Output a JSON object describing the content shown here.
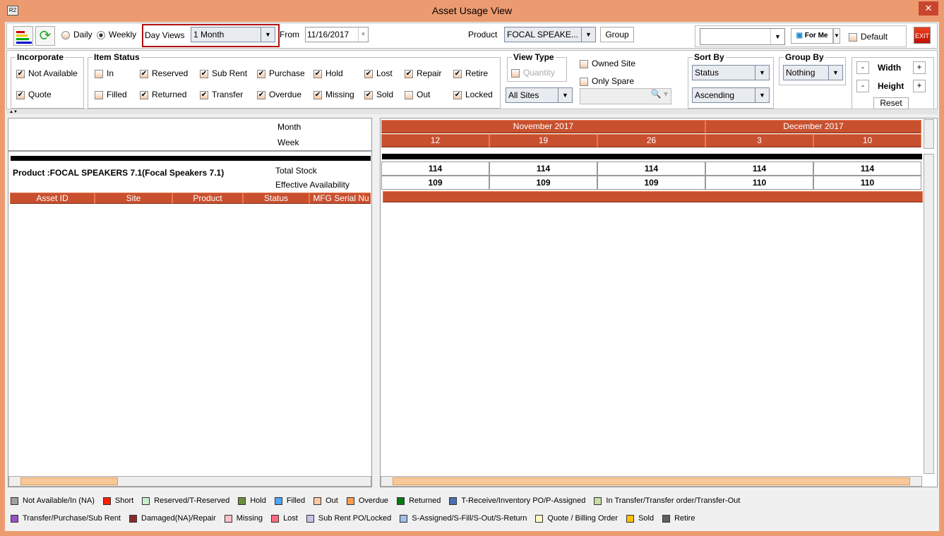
{
  "window": {
    "title": "Asset Usage View",
    "close": "✕",
    "logo": "R2"
  },
  "toolbar": {
    "daily": "Daily",
    "weekly": "Weekly",
    "day_views_label": "Day Views",
    "day_views": "1 Month",
    "from_label": "From",
    "from": "11/16/2017",
    "product_label": "Product",
    "product": "FOCAL SPEAKE...",
    "group": "Group",
    "view_select": "",
    "for_me": "For Me",
    "default": "Default",
    "exit": "EXIT",
    "selected_mode": "Weekly"
  },
  "incorporate": {
    "title": "Incorporate",
    "items": [
      {
        "label": "Not Available",
        "checked": true
      },
      {
        "label": "Quote",
        "checked": true
      }
    ]
  },
  "item_status": {
    "title": "Item Status",
    "items": [
      {
        "label": "In",
        "checked": false
      },
      {
        "label": "Reserved",
        "checked": true
      },
      {
        "label": "Sub Rent",
        "checked": true
      },
      {
        "label": "Purchase",
        "checked": true
      },
      {
        "label": "Hold",
        "checked": true
      },
      {
        "label": "Lost",
        "checked": true
      },
      {
        "label": "Repair",
        "checked": true
      },
      {
        "label": "Retire",
        "checked": true
      },
      {
        "label": "Filled",
        "checked": false
      },
      {
        "label": "Returned",
        "checked": true
      },
      {
        "label": "Transfer",
        "checked": true
      },
      {
        "label": "Overdue",
        "checked": true
      },
      {
        "label": "Missing",
        "checked": true
      },
      {
        "label": "Sold",
        "checked": true
      },
      {
        "label": "Out",
        "checked": false
      },
      {
        "label": "Locked",
        "checked": true
      }
    ]
  },
  "view_type": {
    "title": "View Type",
    "quantity": "Quantity",
    "sites": "All Sites",
    "owned_site": "Owned Site",
    "only_spare": "Only Spare"
  },
  "sort_by": {
    "title": "Sort By",
    "field": "Status",
    "order": "Ascending"
  },
  "group_by": {
    "title": "Group By",
    "value": "Nothing"
  },
  "size": {
    "width": "Width",
    "height": "Height",
    "minus": "-",
    "plus": "+",
    "reset": "Reset"
  },
  "left_panel": {
    "month_label": "Month",
    "week_label": "Week",
    "product": "Product :FOCAL SPEAKERS 7.1(Focal Speakers 7.1)",
    "total_stock_label": "Total Stock",
    "effective_label": "Effective Availability",
    "columns": [
      "Asset ID",
      "Site",
      "Product",
      "Status",
      "MFG Serial Nu"
    ]
  },
  "grid": {
    "months": [
      "November 2017",
      "December 2017"
    ],
    "weeks": [
      "12",
      "19",
      "26",
      "3",
      "10"
    ],
    "total_stock": [
      "114",
      "114",
      "114",
      "114",
      "114"
    ],
    "effective": [
      "109",
      "109",
      "109",
      "110",
      "110"
    ]
  },
  "legend": [
    {
      "label": "Not Available/In (NA)",
      "color": "#a0a0a0"
    },
    {
      "label": "Short",
      "color": "#ff2000"
    },
    {
      "label": "Reserved/T-Reserved",
      "color": "#c8f0d0"
    },
    {
      "label": "Hold",
      "color": "#6b8e3a"
    },
    {
      "label": "Filled",
      "color": "#4da6ff"
    },
    {
      "label": "Out",
      "color": "#ffc8a0"
    },
    {
      "label": "Overdue",
      "color": "#ff9a50"
    },
    {
      "label": "Returned",
      "color": "#007a10"
    },
    {
      "label": "T-Receive/Inventory PO/P-Assigned",
      "color": "#4a70b0"
    },
    {
      "label": "In Transfer/Transfer order/Transfer-Out",
      "color": "#c8dca8"
    },
    {
      "label": "Transfer/Purchase/Sub Rent",
      "color": "#9a50c8"
    },
    {
      "label": "Damaged(NA)/Repair",
      "color": "#8a2a2a"
    },
    {
      "label": "Missing",
      "color": "#ffc0c8"
    },
    {
      "label": "Lost",
      "color": "#ff6a80"
    },
    {
      "label": "Sub Rent PO/Locked",
      "color": "#c8c0e8"
    },
    {
      "label": "S-Assigned/S-Fill/S-Out/S-Return",
      "color": "#a0c0e8"
    },
    {
      "label": "Quote / Billing Order",
      "color": "#fff8c8"
    },
    {
      "label": "Sold",
      "color": "#ffc000"
    },
    {
      "label": "Retire",
      "color": "#606060"
    }
  ]
}
